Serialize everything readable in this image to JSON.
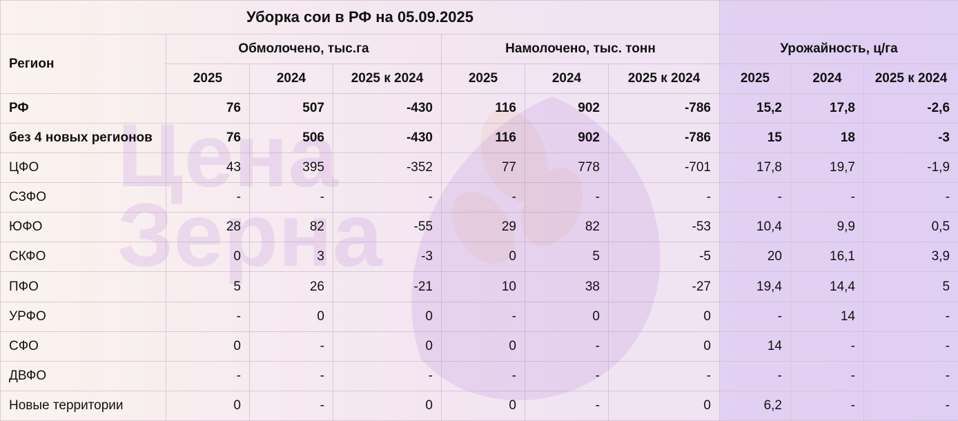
{
  "title": "Уборка сои в РФ на 05.09.2025",
  "region_header": "Регион",
  "groups": [
    "Обмолочено, тыс.га",
    "Намолочено, тыс. тонн",
    "Урожайность, ц/га"
  ],
  "subheaders": [
    "2025",
    "2024",
    "2025 к 2024"
  ],
  "rows": [
    {
      "region": "РФ",
      "bold": true,
      "values": [
        "76",
        "507",
        "-430",
        "116",
        "902",
        "-786",
        "15,2",
        "17,8",
        "-2,6"
      ]
    },
    {
      "region": "без 4 новых регионов",
      "bold": true,
      "values": [
        "76",
        "506",
        "-430",
        "116",
        "902",
        "-786",
        "15",
        "18",
        "-3"
      ]
    },
    {
      "region": "ЦФО",
      "bold": false,
      "values": [
        "43",
        "395",
        "-352",
        "77",
        "778",
        "-701",
        "17,8",
        "19,7",
        "-1,9"
      ]
    },
    {
      "region": "СЗФО",
      "bold": false,
      "values": [
        "-",
        "-",
        "-",
        "-",
        "-",
        "-",
        "-",
        "-",
        "-"
      ]
    },
    {
      "region": "ЮФО",
      "bold": false,
      "values": [
        "28",
        "82",
        "-55",
        "29",
        "82",
        "-53",
        "10,4",
        "9,9",
        "0,5"
      ]
    },
    {
      "region": "СКФО",
      "bold": false,
      "values": [
        "0",
        "3",
        "-3",
        "0",
        "5",
        "-5",
        "20",
        "16,1",
        "3,9"
      ]
    },
    {
      "region": "ПФО",
      "bold": false,
      "values": [
        "5",
        "26",
        "-21",
        "10",
        "38",
        "-27",
        "19,4",
        "14,4",
        "5"
      ]
    },
    {
      "region": "УРФО",
      "bold": false,
      "values": [
        "-",
        "0",
        "0",
        "-",
        "0",
        "0",
        "-",
        "14",
        "-"
      ]
    },
    {
      "region": "СФО",
      "bold": false,
      "values": [
        "0",
        "-",
        "0",
        "0",
        "-",
        "0",
        "14",
        "-",
        "-"
      ]
    },
    {
      "region": "ДВФО",
      "bold": false,
      "values": [
        "-",
        "-",
        "-",
        "-",
        "-",
        "-",
        "-",
        "-",
        "-"
      ]
    },
    {
      "region": "Новые территории",
      "bold": false,
      "values": [
        "0",
        "-",
        "0",
        "0",
        "-",
        "0",
        "6,2",
        "-",
        "-"
      ]
    }
  ],
  "watermark": {
    "text_line1": "Цена",
    "text_line2": "Зерна",
    "color": "#9b6fd0"
  }
}
